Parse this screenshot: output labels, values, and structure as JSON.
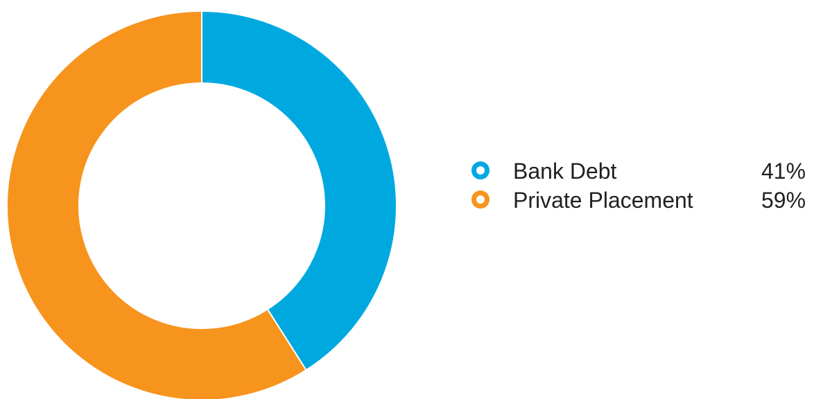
{
  "chart_data": {
    "type": "pie",
    "variant": "donut",
    "start": "top",
    "direction": "clockwise",
    "legend_position": "right",
    "series": [
      {
        "name": "Bank Debt",
        "value": 41,
        "label": "41%",
        "color": "#00a8e0"
      },
      {
        "name": "Private Placement",
        "value": 59,
        "label": "59%",
        "color": "#f7941d"
      }
    ]
  }
}
